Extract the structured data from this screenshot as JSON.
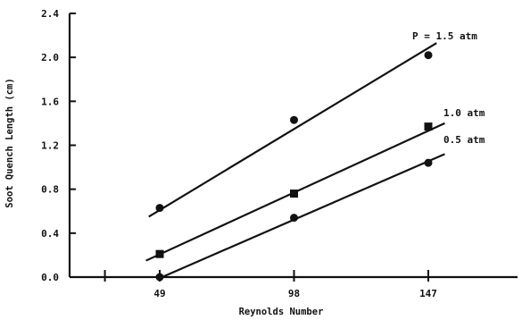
{
  "chart_data": {
    "type": "scatter",
    "xlabel": "Reynolds Number",
    "ylabel": "Soot Quench Length (cm)",
    "xlim": [
      20,
      180
    ],
    "ylim": [
      0,
      2.4
    ],
    "x_ticks": [
      49,
      98,
      147
    ],
    "x_tick_labels": [
      "49",
      "98",
      "147"
    ],
    "x_minor_ticks": [
      29
    ],
    "y_ticks": [
      0.0,
      0.4,
      0.8,
      1.2,
      1.6,
      2.0,
      2.4
    ],
    "y_tick_labels": [
      "0.0",
      "0.4",
      "0.8",
      "1.2",
      "1.6",
      "2.0",
      "2.4"
    ],
    "series": [
      {
        "name": "P = 1.5 atm",
        "marker": "circle",
        "points": [
          {
            "x": 49,
            "y": 0.63
          },
          {
            "x": 98,
            "y": 1.43
          },
          {
            "x": 147,
            "y": 2.02
          }
        ],
        "fit": {
          "x": [
            45,
            150
          ],
          "y": [
            0.55,
            2.13
          ]
        }
      },
      {
        "name": "1.0 atm",
        "marker": "square",
        "points": [
          {
            "x": 49,
            "y": 0.21
          },
          {
            "x": 98,
            "y": 0.76
          },
          {
            "x": 147,
            "y": 1.37
          }
        ],
        "fit": {
          "x": [
            44,
            153
          ],
          "y": [
            0.15,
            1.4
          ]
        }
      },
      {
        "name": "0.5 atm",
        "marker": "circle",
        "points": [
          {
            "x": 49,
            "y": 0.0
          },
          {
            "x": 98,
            "y": 0.54
          },
          {
            "x": 147,
            "y": 1.04
          }
        ],
        "fit": {
          "x": [
            48,
            153
          ],
          "y": [
            -0.02,
            1.12
          ]
        }
      }
    ],
    "grid": false,
    "legend": "none"
  }
}
